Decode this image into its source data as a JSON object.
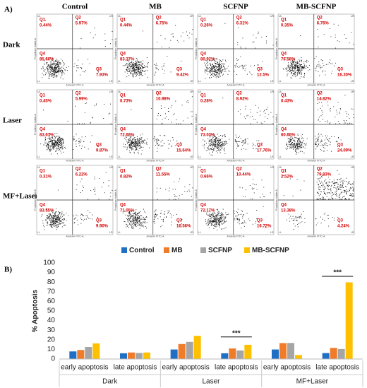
{
  "panel_a": {
    "label": "A)",
    "columns": [
      "Control",
      "MB",
      "SCFNP",
      "MB-SCFNP"
    ],
    "rows": [
      "Dark",
      "Laser",
      "MF+Laser"
    ],
    "quadrants": [
      "Q1",
      "Q2",
      "Q3",
      "Q4"
    ],
    "corners": [
      "UL",
      "UR",
      "LL",
      "LR"
    ],
    "x_label": "Annexin FITC-A",
    "y_label": "Propidium Iodide-A",
    "plots": [
      [
        {
          "values": [
            0.44,
            5.97,
            7.93,
            85.66
          ],
          "value_labels": [
            "0.44%",
            "5.97%",
            "7.93%",
            "85.66%"
          ]
        },
        {
          "values": [
            0.44,
            6.75,
            9.42,
            83.37
          ],
          "value_labels": [
            "0.44%",
            "6.75%",
            "9.42%",
            "83.37%"
          ]
        },
        {
          "values": [
            0.26,
            6.31,
            12.5,
            80.92
          ],
          "value_labels": [
            "0.26%",
            "6.31%",
            "12.5%",
            "80.92%"
          ]
        },
        {
          "values": [
            0.35,
            6.76,
            16.3,
            76.58
          ],
          "value_labels": [
            "0.35%",
            "6.76%",
            "16.30%",
            "76.58%"
          ]
        }
      ],
      [
        {
          "values": [
            0.45,
            5.99,
            9.87,
            83.67
          ],
          "value_labels": [
            "0.45%",
            "5.99%",
            "9.87%",
            "83.67%"
          ]
        },
        {
          "values": [
            0.73,
            10.98,
            15.64,
            72.63
          ],
          "value_labels": [
            "0.73%",
            "10.98%",
            "15.64%",
            "72.63%"
          ]
        },
        {
          "values": [
            0.28,
            8.92,
            17.76,
            73.03
          ],
          "value_labels": [
            "0.28%",
            "8.92%",
            "17.76%",
            "73.03%"
          ]
        },
        {
          "values": [
            0.43,
            14.82,
            24.09,
            60.65
          ],
          "value_labels": [
            "0.43%",
            "14.82%",
            "24.09%",
            "60.65%"
          ]
        }
      ],
      [
        {
          "values": [
            0.31,
            6.22,
            9.9,
            83.55
          ],
          "value_labels": [
            "0.31%",
            "6.22%",
            "9.90%",
            "83.55%"
          ]
        },
        {
          "values": [
            0.82,
            11.55,
            16.56,
            71.05
          ],
          "value_labels": [
            "0.82%",
            "11.55%",
            "16.56%",
            "71.05%"
          ]
        },
        {
          "values": [
            0.66,
            10.44,
            16.72,
            72.17
          ],
          "value_labels": [
            "0.66%",
            "10.44%",
            "16.72%",
            "72.17%"
          ]
        },
        {
          "values": [
            2.52,
            79.83,
            4.24,
            13.38
          ],
          "value_labels": [
            "2.52%",
            "79.83%",
            "4.24%",
            "13.38%"
          ]
        }
      ]
    ]
  },
  "panel_b": {
    "label": "B)"
  },
  "chart_data": {
    "type": "bar",
    "ylabel": "% Apoptosis",
    "categories": [
      "early apoptosis",
      "late apoptosis",
      "early apoptosis",
      "late apoptosis",
      "early apoptosis",
      "late apoptosis"
    ],
    "groups": [
      "Dark",
      "Laser",
      "MF+Laser"
    ],
    "series": [
      {
        "name": "Control",
        "color": "#1f6fc5",
        "values": [
          7.9,
          6.0,
          9.9,
          6.0,
          9.9,
          6.2
        ]
      },
      {
        "name": "MB",
        "color": "#f07c2a",
        "values": [
          9.4,
          6.8,
          15.6,
          11.0,
          16.6,
          11.6
        ]
      },
      {
        "name": "SCFNP",
        "color": "#a5a5a5",
        "values": [
          12.5,
          6.3,
          17.8,
          8.9,
          16.7,
          10.4
        ]
      },
      {
        "name": "MB-SCFNP",
        "color": "#ffc000",
        "values": [
          16.3,
          6.8,
          24.1,
          14.8,
          4.2,
          79.8
        ]
      }
    ],
    "ylim": [
      0,
      100
    ],
    "yticks": [
      0,
      10,
      20,
      30,
      40,
      50,
      60,
      70,
      80,
      90,
      100
    ],
    "annotations": [
      "***",
      "***"
    ]
  }
}
